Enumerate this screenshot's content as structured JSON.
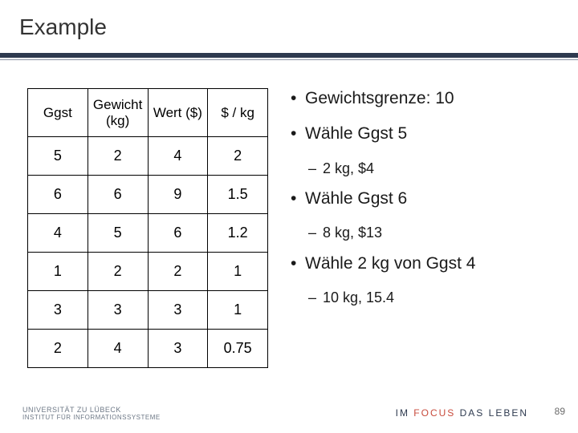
{
  "title": "Example",
  "table": {
    "columns": [
      "Ggst",
      "Gewicht (kg)",
      "Wert ($)",
      "$ / kg"
    ],
    "rows": [
      [
        "5",
        "2",
        "4",
        "2"
      ],
      [
        "6",
        "6",
        "9",
        "1.5"
      ],
      [
        "4",
        "5",
        "6",
        "1.2"
      ],
      [
        "1",
        "2",
        "2",
        "1"
      ],
      [
        "3",
        "3",
        "3",
        "1"
      ],
      [
        "2",
        "4",
        "3",
        "0.75"
      ]
    ],
    "border_color": "#000000",
    "cell_fontsize": 18,
    "header_fontsize": 17
  },
  "bullets": [
    {
      "level": 1,
      "text": "Gewichtsgrenze: 10"
    },
    {
      "level": 1,
      "text": "Wähle Ggst 5"
    },
    {
      "level": 2,
      "text": "2 kg, $4"
    },
    {
      "level": 1,
      "text": "Wähle Ggst 6"
    },
    {
      "level": 2,
      "text": "8 kg, $13"
    },
    {
      "level": 1,
      "text": "Wähle 2 kg von Ggst 4"
    },
    {
      "level": 2,
      "text": "10 kg, 15.4"
    }
  ],
  "footer": {
    "logo_line1": "UNIVERSITÄT ZU LÜBECK",
    "logo_line2": "INSTITUT FÜR INFORMATIONSSYSTEME",
    "tagline_pre": "IM ",
    "tagline_red": "FOCUS",
    "tagline_post": " DAS LEBEN",
    "page": "89"
  },
  "colors": {
    "rule": "#2e3a4f",
    "rule_thin": "#8a93a3",
    "text": "#1a1a1a",
    "accent_red": "#c84b3c",
    "background": "#ffffff"
  }
}
